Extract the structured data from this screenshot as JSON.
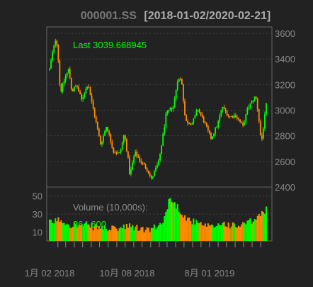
{
  "chart_data": {
    "type": "candlestick",
    "title": {
      "symbol": "000001.SS",
      "range": "[2018-01-02/2020-02-21]"
    },
    "price_panel": {
      "last_label": "Last 3039.668945",
      "y_ticks": [
        2400,
        2600,
        2800,
        3000,
        3200,
        3400,
        3600
      ],
      "ylim": [
        2400,
        3650
      ],
      "grid": true,
      "approx_close_path": [
        [
          "2018-01-02",
          3320
        ],
        [
          "2018-01-10",
          3420
        ],
        [
          "2018-01-24",
          3560
        ],
        [
          "2018-01-29",
          3510
        ],
        [
          "2018-02-06",
          3300
        ],
        [
          "2018-02-09",
          3130
        ],
        [
          "2018-02-28",
          3260
        ],
        [
          "2018-03-12",
          3320
        ],
        [
          "2018-03-23",
          3150
        ],
        [
          "2018-04-10",
          3190
        ],
        [
          "2018-04-27",
          3080
        ],
        [
          "2018-05-21",
          3210
        ],
        [
          "2018-06-01",
          3080
        ],
        [
          "2018-06-19",
          2900
        ],
        [
          "2018-07-05",
          2730
        ],
        [
          "2018-07-26",
          2880
        ],
        [
          "2018-08-20",
          2680
        ],
        [
          "2018-09-12",
          2660
        ],
        [
          "2018-09-28",
          2820
        ],
        [
          "2018-10-12",
          2610
        ],
        [
          "2018-10-18",
          2490
        ],
        [
          "2018-11-05",
          2670
        ],
        [
          "2018-11-30",
          2590
        ],
        [
          "2018-12-20",
          2540
        ],
        [
          "2019-01-03",
          2460
        ],
        [
          "2019-01-31",
          2600
        ],
        [
          "2019-02-25",
          2960
        ],
        [
          "2019-03-25",
          3040
        ],
        [
          "2019-04-08",
          3240
        ],
        [
          "2019-04-22",
          3240
        ],
        [
          "2019-05-06",
          2910
        ],
        [
          "2019-05-31",
          2900
        ],
        [
          "2019-06-20",
          3010
        ],
        [
          "2019-07-10",
          2920
        ],
        [
          "2019-08-06",
          2780
        ],
        [
          "2019-08-30",
          2890
        ],
        [
          "2019-09-16",
          3030
        ],
        [
          "2019-10-10",
          2950
        ],
        [
          "2019-11-04",
          2960
        ],
        [
          "2019-11-29",
          2870
        ],
        [
          "2019-12-17",
          3020
        ],
        [
          "2020-01-14",
          3110
        ],
        [
          "2020-01-23",
          2980
        ],
        [
          "2020-02-03",
          2740
        ],
        [
          "2020-02-21",
          3040
        ]
      ]
    },
    "volume_panel": {
      "label": "Volume (10,000s):",
      "last_value": "364,600",
      "y_ticks": [
        10,
        30,
        50
      ],
      "ylim": [
        0,
        60
      ],
      "approx_path": [
        [
          "2018-01-02",
          20
        ],
        [
          "2018-02-06",
          24
        ],
        [
          "2018-03-12",
          19
        ],
        [
          "2018-04-10",
          17
        ],
        [
          "2018-05-21",
          16
        ],
        [
          "2018-07-05",
          15
        ],
        [
          "2018-08-20",
          13
        ],
        [
          "2018-10-18",
          16
        ],
        [
          "2018-12-20",
          12
        ],
        [
          "2019-01-31",
          16
        ],
        [
          "2019-02-25",
          30
        ],
        [
          "2019-03-08",
          48
        ],
        [
          "2019-03-25",
          42
        ],
        [
          "2019-04-08",
          38
        ],
        [
          "2019-05-06",
          26
        ],
        [
          "2019-06-20",
          19
        ],
        [
          "2019-08-06",
          15
        ],
        [
          "2019-09-16",
          20
        ],
        [
          "2019-11-04",
          16
        ],
        [
          "2019-12-17",
          20
        ],
        [
          "2020-01-14",
          24
        ],
        [
          "2020-02-03",
          30
        ],
        [
          "2020-02-21",
          36
        ]
      ]
    },
    "x_labels": [
      {
        "date": "2018-01-02",
        "text": "1月 02 2018"
      },
      {
        "date": "2018-10-08",
        "text": "10月 08 2018"
      },
      {
        "date": "2019-08-01",
        "text": "8月 01 2019"
      }
    ],
    "x_range": [
      "2018-01-02",
      "2020-02-21"
    ],
    "colors": {
      "background": "#222222",
      "up": "#00ff00",
      "down": "#ff8c00",
      "border": "#666666",
      "grid": "#444444",
      "axis_text": "#888888",
      "title_symbol": "#777777",
      "title_range": "#aaaaaa",
      "label_green": "#00ff00",
      "volume_label": "#8c8c8c"
    }
  }
}
